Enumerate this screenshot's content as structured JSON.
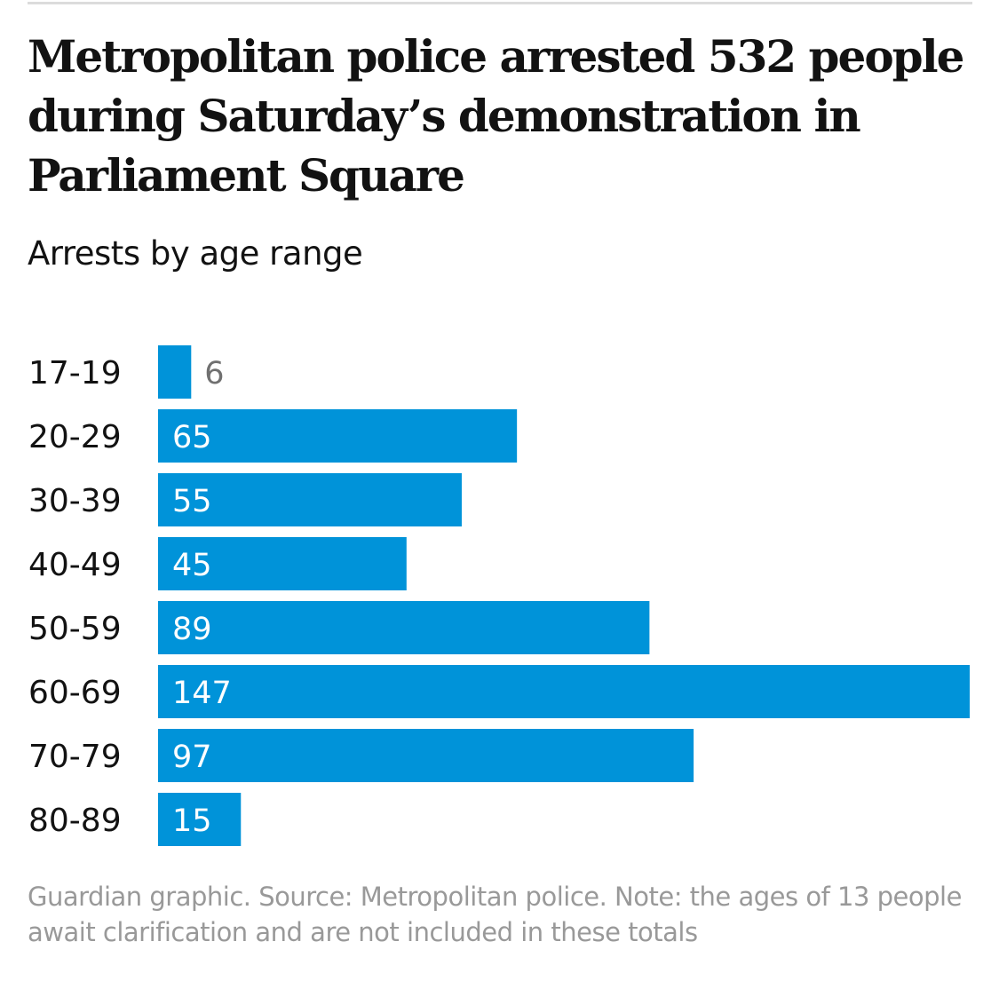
{
  "title": "Metropolitan police arrested 532 people during Saturday’s demonstration in Parliament Square",
  "subtitle": "Arrests by age range",
  "footer": "Guardian graphic. Source: Metropolitan police. Note: the ages of 13 people await clarification and are not included in these totals",
  "colors": {
    "bar": "#0093d9",
    "label_inside": "#ffffff",
    "label_outside": "#707070"
  },
  "chart_data": {
    "type": "bar",
    "orientation": "horizontal",
    "categories": [
      "17-19",
      "20-29",
      "30-39",
      "40-49",
      "50-59",
      "60-69",
      "70-79",
      "80-89"
    ],
    "values": [
      6,
      65,
      55,
      45,
      89,
      147,
      97,
      15
    ],
    "title": "Metropolitan police arrested 532 people during Saturday’s demonstration in Parliament Square",
    "subtitle": "Arrests by age range",
    "xlabel": "",
    "ylabel": "",
    "xlim": [
      0,
      147
    ],
    "grid": false,
    "data_labels": true
  }
}
